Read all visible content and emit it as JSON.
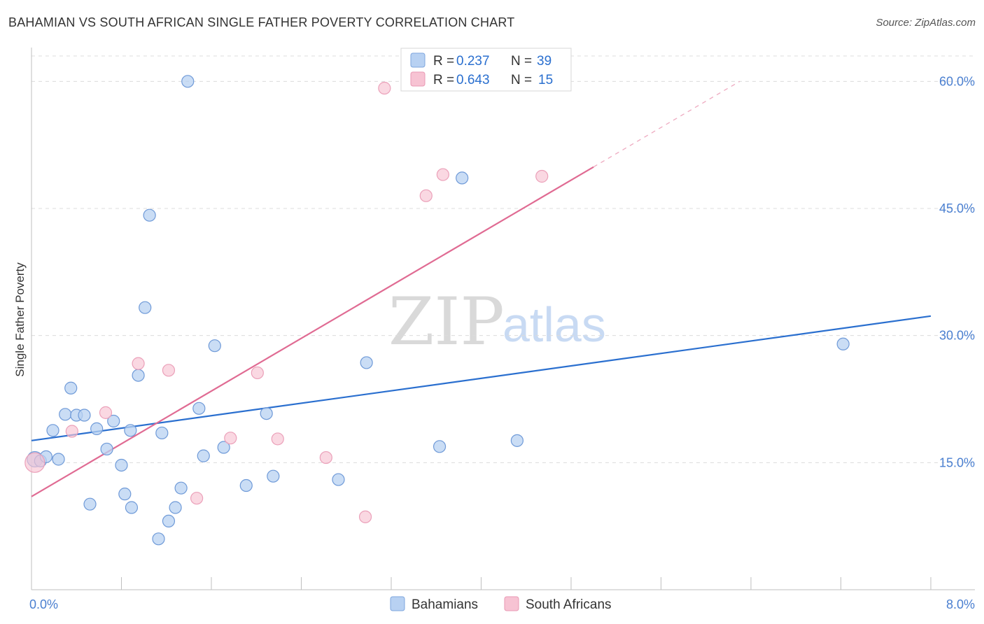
{
  "title": "BAHAMIAN VS SOUTH AFRICAN SINGLE FATHER POVERTY CORRELATION CHART",
  "source": "Source: ZipAtlas.com",
  "watermark": {
    "zip": "ZIP",
    "atlas": "atlas"
  },
  "colors": {
    "blue": "#4a7fd0",
    "blue_fill": "#b8d1f2",
    "blue_line": "#2a6fcf",
    "pink": "#e8759a",
    "pink_fill": "#f7c3d3",
    "pink_line": "#e06b93"
  },
  "legend_top": [
    {
      "r_label": "R =",
      "r_value": "0.237",
      "n_label": "N =",
      "n_value": "39",
      "color": "blue"
    },
    {
      "r_label": "R =",
      "r_value": "0.643",
      "n_label": "N =",
      "n_value": "15",
      "color": "pink"
    }
  ],
  "legend_bottom": [
    {
      "label": "Bahamians",
      "color": "blue"
    },
    {
      "label": "South Africans",
      "color": "pink"
    }
  ],
  "chart_data": {
    "type": "scatter",
    "title": "BAHAMIAN VS SOUTH AFRICAN SINGLE FATHER POVERTY CORRELATION CHART",
    "xlabel": "",
    "ylabel": "Single Father Poverty",
    "xlim": [
      0,
      8
    ],
    "ylim": [
      0,
      63
    ],
    "x_tick_labels": [
      {
        "value": 0,
        "label": "0.0%"
      },
      {
        "value": 8,
        "label": "8.0%"
      }
    ],
    "y_tick_labels": [
      {
        "value": 15,
        "label": "15.0%"
      },
      {
        "value": 30,
        "label": "30.0%"
      },
      {
        "value": 45,
        "label": "45.0%"
      },
      {
        "value": 60,
        "label": "60.0%"
      }
    ],
    "grid": true,
    "series": [
      {
        "name": "Bahamians",
        "color": "blue",
        "points": [
          [
            0.03,
            15.4
          ],
          [
            0.08,
            15.2
          ],
          [
            0.13,
            15.7
          ],
          [
            0.19,
            18.8
          ],
          [
            0.24,
            15.4
          ],
          [
            0.3,
            20.7
          ],
          [
            0.35,
            23.8
          ],
          [
            0.4,
            20.6
          ],
          [
            0.47,
            20.6
          ],
          [
            0.52,
            10.1
          ],
          [
            0.58,
            19.0
          ],
          [
            0.67,
            16.6
          ],
          [
            0.73,
            19.9
          ],
          [
            0.8,
            14.7
          ],
          [
            0.83,
            11.3
          ],
          [
            0.88,
            18.8
          ],
          [
            0.89,
            9.7
          ],
          [
            0.95,
            25.3
          ],
          [
            1.01,
            33.3
          ],
          [
            1.05,
            44.2
          ],
          [
            1.13,
            6.0
          ],
          [
            1.16,
            18.5
          ],
          [
            1.22,
            8.1
          ],
          [
            1.28,
            9.7
          ],
          [
            1.33,
            12.0
          ],
          [
            1.39,
            60.0
          ],
          [
            1.49,
            21.4
          ],
          [
            1.53,
            15.8
          ],
          [
            1.63,
            28.8
          ],
          [
            1.71,
            16.8
          ],
          [
            1.91,
            12.3
          ],
          [
            2.09,
            20.8
          ],
          [
            2.15,
            13.4
          ],
          [
            2.73,
            13.0
          ],
          [
            2.98,
            26.8
          ],
          [
            3.63,
            16.9
          ],
          [
            3.83,
            48.6
          ],
          [
            4.32,
            17.6
          ],
          [
            7.22,
            29.0
          ]
        ]
      },
      {
        "name": "South Africans",
        "color": "pink",
        "points": [
          [
            0.03,
            15.0
          ],
          [
            0.36,
            18.7
          ],
          [
            0.66,
            20.9
          ],
          [
            0.95,
            26.7
          ],
          [
            1.22,
            25.9
          ],
          [
            1.47,
            10.8
          ],
          [
            1.77,
            17.9
          ],
          [
            2.01,
            25.6
          ],
          [
            2.19,
            17.8
          ],
          [
            2.62,
            15.6
          ],
          [
            2.97,
            8.6
          ],
          [
            3.14,
            59.2
          ],
          [
            3.51,
            46.5
          ],
          [
            3.66,
            49.0
          ],
          [
            4.54,
            48.8
          ]
        ]
      }
    ],
    "trend_lines": [
      {
        "series": "Bahamians",
        "x": [
          0,
          8
        ],
        "y": [
          17.6,
          32.3
        ]
      },
      {
        "series": "South Africans",
        "x": [
          0,
          5.0
        ],
        "y": [
          11.0,
          49.9
        ],
        "dashed_extension_to": [
          6.3,
          60.0
        ]
      }
    ]
  }
}
